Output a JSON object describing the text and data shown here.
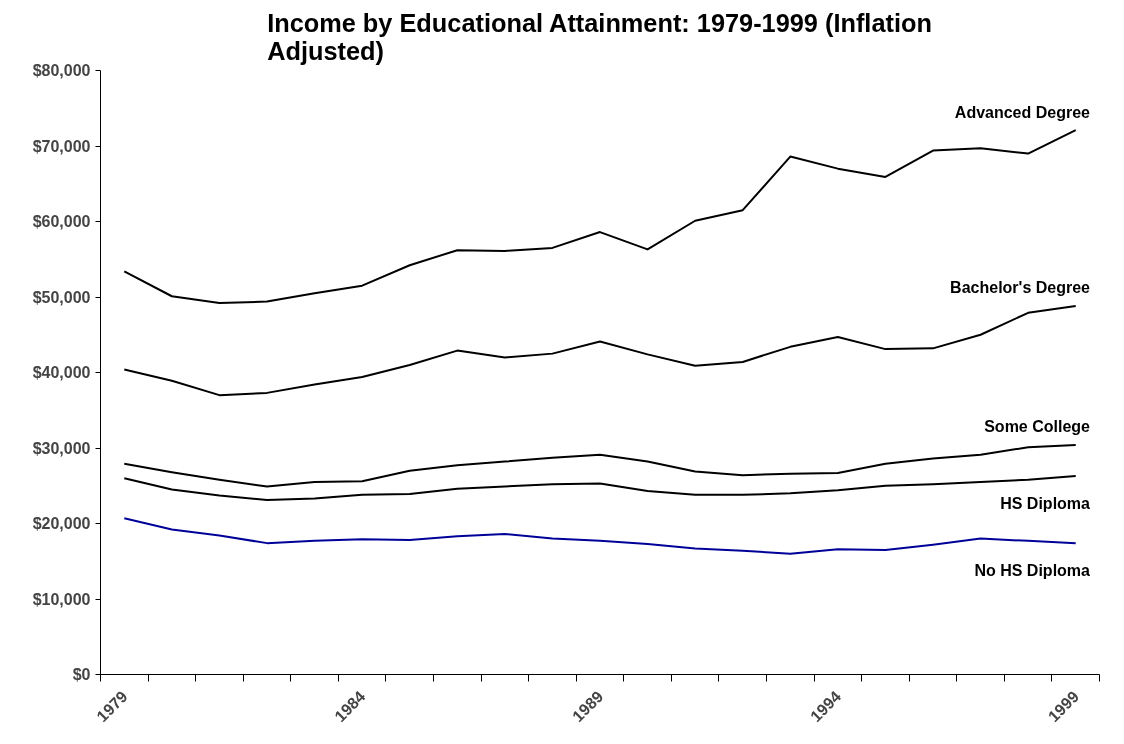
{
  "chart_data": {
    "type": "line",
    "title": "Income by Educational Attainment: 1979-1999 (Inflation\nAdjusted)",
    "categories": [
      "1979",
      null,
      null,
      null,
      null,
      "1984",
      null,
      null,
      null,
      null,
      "1989",
      null,
      null,
      null,
      null,
      "1994",
      null,
      null,
      null,
      null,
      "1999"
    ],
    "series": [
      {
        "name": "Advanced Degree",
        "color": "#000000",
        "values": [
          53400,
          50100,
          49200,
          49400,
          50500,
          51500,
          54200,
          56200,
          56100,
          56500,
          58600,
          56300,
          60100,
          61500,
          68600,
          67000,
          65900,
          69400,
          69700,
          69000,
          72100
        ]
      },
      {
        "name": "Bachelor's Degree",
        "color": "#000000",
        "values": [
          40400,
          38900,
          37000,
          37300,
          38400,
          39400,
          41000,
          42900,
          42000,
          42500,
          44100,
          42400,
          40900,
          41400,
          43400,
          44700,
          43100,
          43200,
          45000,
          47900,
          48800
        ]
      },
      {
        "name": "Some College",
        "color": "#000000",
        "values": [
          27900,
          26800,
          25800,
          24900,
          25500,
          25600,
          27000,
          27700,
          28200,
          28700,
          29100,
          28200,
          26900,
          26400,
          26600,
          26700,
          27900,
          28600,
          29100,
          30100,
          30400
        ]
      },
      {
        "name": "HS Diploma",
        "color": "#000000",
        "values": [
          26000,
          24500,
          23700,
          23100,
          23300,
          23800,
          23900,
          24600,
          24900,
          25200,
          25300,
          24300,
          23800,
          23800,
          24000,
          24400,
          25000,
          25200,
          25500,
          25800,
          26300
        ]
      },
      {
        "name": "No HS Diploma",
        "color": "#000099",
        "values": [
          20700,
          19200,
          18400,
          17400,
          17700,
          17900,
          17800,
          18300,
          18600,
          18000,
          17700,
          17300,
          16700,
          16400,
          16000,
          16600,
          16500,
          17200,
          18000,
          17700,
          17400
        ]
      }
    ],
    "ylim": [
      0,
      80000
    ],
    "yticks": [
      {
        "value": 0,
        "label": "$0"
      },
      {
        "value": 10000,
        "label": "$10,000"
      },
      {
        "value": 20000,
        "label": "$20,000"
      },
      {
        "value": 30000,
        "label": "$30,000"
      },
      {
        "value": 40000,
        "label": "$40,000"
      },
      {
        "value": 50000,
        "label": "$50,000"
      },
      {
        "value": 60000,
        "label": "$60,000"
      },
      {
        "value": 70000,
        "label": "$70,000"
      },
      {
        "value": 80000,
        "label": "$80,000"
      }
    ]
  }
}
